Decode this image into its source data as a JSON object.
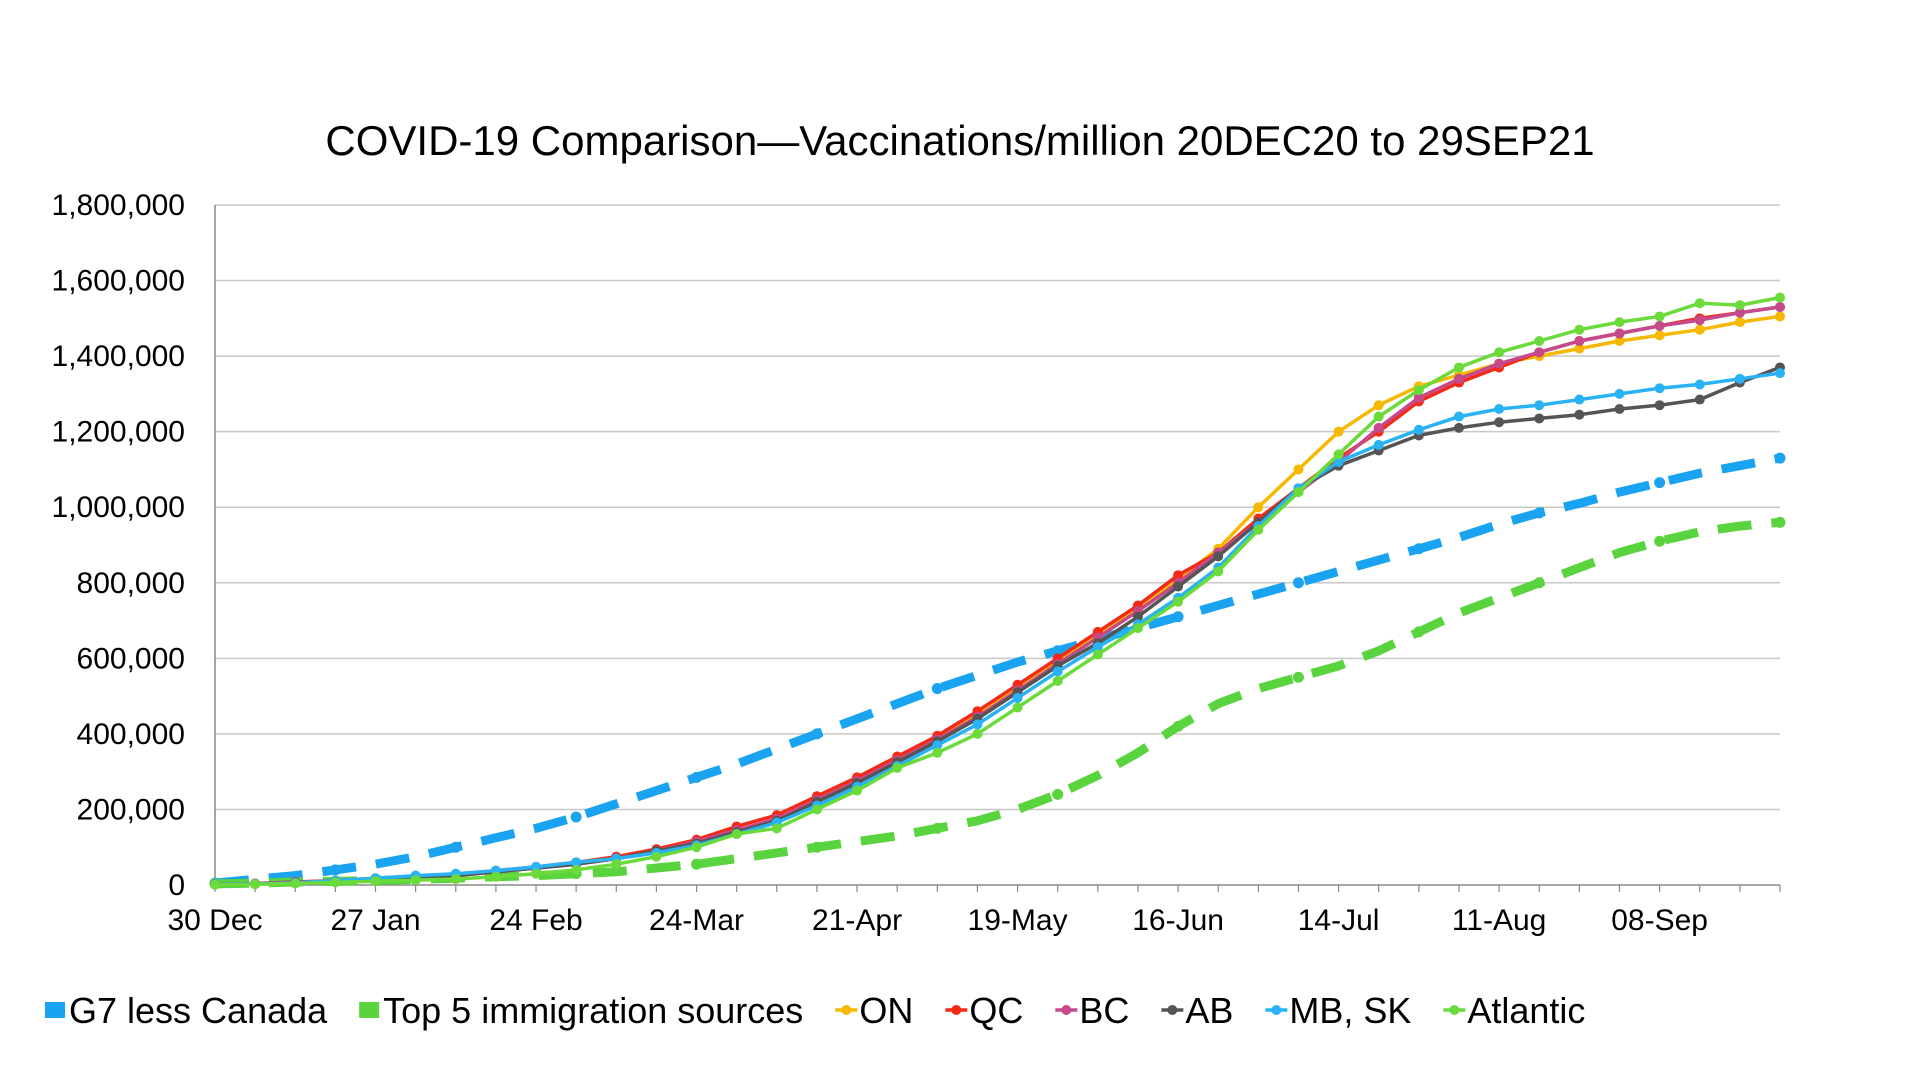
{
  "chart_data": {
    "type": "line",
    "title": "COVID-19 Comparison—Vaccinations/million 20DEC20 to 29SEP21",
    "xlabel": "",
    "ylabel": "",
    "ylim": [
      0,
      1800000
    ],
    "grid": true,
    "legend_position": "bottom",
    "x": [
      "30 Dec",
      "06 Jan",
      "13 Jan",
      "20 Jan",
      "27 Jan",
      "03 Feb",
      "10 Feb",
      "17 Feb",
      "24 Feb",
      "03 Mar",
      "10 Mar",
      "17 Mar",
      "24 Mar",
      "31 Mar",
      "07 Apr",
      "14 Apr",
      "21 Apr",
      "28 Apr",
      "05 May",
      "12 May",
      "19 May",
      "26 May",
      "02 Jun",
      "09 Jun",
      "16 Jun",
      "23 Jun",
      "30 Jun",
      "07 Jul",
      "14 Jul",
      "21 Jul",
      "28 Jul",
      "04 Aug",
      "11 Aug",
      "18 Aug",
      "25 Aug",
      "01 Sep",
      "08 Sep",
      "15 Sep",
      "22 Sep",
      "29 Sep"
    ],
    "x_tick_labels": [
      "30 Dec",
      "27 Jan",
      "24 Feb",
      "24-Mar",
      "21-Apr",
      "19-May",
      "16-Jun",
      "14-Jul",
      "11-Aug",
      "08-Sep"
    ],
    "y_tick_labels": [
      "0",
      "200,000",
      "400,000",
      "600,000",
      "800,000",
      "1,000,000",
      "1,200,000",
      "1,400,000",
      "1,600,000",
      "1,800,000"
    ],
    "series": [
      {
        "name": "G7 less Canada",
        "color": "#1AA3F0",
        "style": "dash",
        "markers": false,
        "values": [
          5000,
          15000,
          25000,
          40000,
          55000,
          75000,
          100000,
          125000,
          150000,
          180000,
          215000,
          250000,
          285000,
          320000,
          360000,
          400000,
          440000,
          480000,
          520000,
          555000,
          590000,
          620000,
          650000,
          680000,
          710000,
          740000,
          770000,
          800000,
          830000,
          860000,
          890000,
          920000,
          955000,
          985000,
          1010000,
          1040000,
          1065000,
          1090000,
          1110000,
          1130000
        ]
      },
      {
        "name": "Top 5 immigration sources",
        "color": "#5AD43E",
        "style": "dash",
        "markers": false,
        "values": [
          3000,
          5000,
          8000,
          10000,
          12000,
          15000,
          18000,
          22000,
          25000,
          30000,
          35000,
          45000,
          55000,
          70000,
          85000,
          100000,
          115000,
          130000,
          150000,
          170000,
          200000,
          240000,
          290000,
          350000,
          420000,
          480000,
          520000,
          550000,
          580000,
          620000,
          670000,
          720000,
          760000,
          800000,
          840000,
          880000,
          910000,
          935000,
          950000,
          960000
        ]
      },
      {
        "name": "ON",
        "color": "#F6B800",
        "style": "solid",
        "markers": true,
        "values": [
          2000,
          3000,
          5000,
          10000,
          15000,
          20000,
          25000,
          35000,
          45000,
          55000,
          70000,
          90000,
          110000,
          140000,
          170000,
          220000,
          280000,
          330000,
          390000,
          450000,
          520000,
          590000,
          660000,
          730000,
          810000,
          890000,
          1000000,
          1100000,
          1200000,
          1270000,
          1320000,
          1350000,
          1380000,
          1400000,
          1420000,
          1440000,
          1455000,
          1470000,
          1490000,
          1505000
        ]
      },
      {
        "name": "QC",
        "color": "#F42A16",
        "style": "solid",
        "markers": true,
        "values": [
          2000,
          4000,
          8000,
          12000,
          18000,
          22000,
          28000,
          38000,
          48000,
          60000,
          75000,
          95000,
          120000,
          155000,
          185000,
          235000,
          285000,
          340000,
          395000,
          460000,
          530000,
          600000,
          670000,
          740000,
          820000,
          880000,
          970000,
          1050000,
          1130000,
          1200000,
          1280000,
          1330000,
          1370000,
          1410000,
          1440000,
          1460000,
          1480000,
          1500000,
          1515000,
          1530000
        ]
      },
      {
        "name": "BC",
        "color": "#C54A8C",
        "style": "solid",
        "markers": true,
        "values": [
          2000,
          3000,
          6000,
          10000,
          15000,
          20000,
          25000,
          35000,
          45000,
          55000,
          70000,
          90000,
          115000,
          145000,
          175000,
          225000,
          275000,
          330000,
          385000,
          445000,
          515000,
          585000,
          655000,
          725000,
          800000,
          880000,
          960000,
          1040000,
          1120000,
          1210000,
          1290000,
          1340000,
          1380000,
          1410000,
          1440000,
          1460000,
          1480000,
          1495000,
          1515000,
          1530000
        ]
      },
      {
        "name": "AB",
        "color": "#555555",
        "style": "solid",
        "markers": true,
        "values": [
          2000,
          3000,
          6000,
          10000,
          15000,
          20000,
          25000,
          35000,
          45000,
          55000,
          70000,
          90000,
          110000,
          140000,
          170000,
          220000,
          270000,
          325000,
          380000,
          440000,
          510000,
          580000,
          640000,
          710000,
          790000,
          870000,
          960000,
          1050000,
          1110000,
          1150000,
          1190000,
          1210000,
          1225000,
          1235000,
          1245000,
          1260000,
          1270000,
          1285000,
          1330000,
          1370000
        ]
      },
      {
        "name": "MB, SK",
        "color": "#29B3F5",
        "style": "solid",
        "markers": true,
        "values": [
          2000,
          3000,
          6000,
          12000,
          18000,
          25000,
          30000,
          38000,
          48000,
          60000,
          70000,
          85000,
          105000,
          135000,
          165000,
          210000,
          260000,
          315000,
          370000,
          425000,
          495000,
          565000,
          630000,
          690000,
          760000,
          840000,
          950000,
          1050000,
          1120000,
          1165000,
          1205000,
          1240000,
          1260000,
          1270000,
          1285000,
          1300000,
          1315000,
          1325000,
          1340000,
          1355000
        ]
      },
      {
        "name": "Atlantic",
        "color": "#6ADB3A",
        "style": "solid",
        "markers": true,
        "values": [
          1000,
          2000,
          4000,
          7000,
          10000,
          13000,
          16000,
          22000,
          30000,
          40000,
          55000,
          75000,
          100000,
          135000,
          150000,
          200000,
          250000,
          310000,
          350000,
          400000,
          470000,
          540000,
          610000,
          680000,
          750000,
          830000,
          940000,
          1040000,
          1140000,
          1240000,
          1310000,
          1370000,
          1410000,
          1440000,
          1470000,
          1490000,
          1505000,
          1540000,
          1535000,
          1555000
        ]
      }
    ]
  }
}
